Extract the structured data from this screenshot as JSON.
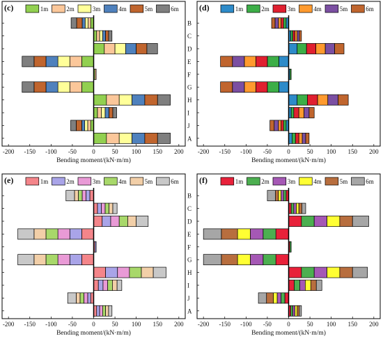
{
  "chart_data": [
    {
      "type": "bar",
      "orientation": "horizontal",
      "stacked": true,
      "panel_label": "(c)",
      "xlabel": "Bending moment/(kN·m/m)",
      "xlim": [
        -215,
        215
      ],
      "xticks": [
        -200,
        -150,
        -100,
        -50,
        0,
        50,
        100,
        150,
        200
      ],
      "categories": [
        "B",
        "C",
        "D",
        "E",
        "F",
        "G",
        "H",
        "I",
        "J",
        "A"
      ],
      "legend": {
        "placement": "top"
      },
      "colors": [
        "#92d050",
        "#fbc79a",
        "#ffff99",
        "#4f81bd",
        "#c0652e",
        "#7f7f7f"
      ],
      "series": [
        {
          "name": "1m",
          "values": [
            -7,
            7,
            25,
            -28,
            3,
            -28,
            30,
            9,
            -7,
            30
          ]
        },
        {
          "name": "2m",
          "values": [
            -6,
            7,
            25,
            -28,
            3,
            -28,
            30,
            9,
            -7,
            30
          ]
        },
        {
          "name": "3m",
          "values": [
            -7,
            7,
            25,
            -28,
            0,
            -28,
            30,
            9,
            -7,
            30
          ]
        },
        {
          "name": "4m",
          "values": [
            -7,
            7,
            25,
            -28,
            0,
            -28,
            30,
            9,
            -7,
            30
          ]
        },
        {
          "name": "5m",
          "values": [
            -13,
            7,
            25,
            -28,
            0,
            -28,
            30,
            9,
            -13,
            30
          ]
        },
        {
          "name": "6m",
          "values": [
            -13,
            8,
            25,
            -28,
            0,
            -28,
            30,
            9,
            -13,
            30
          ]
        }
      ]
    },
    {
      "type": "bar",
      "orientation": "horizontal",
      "stacked": true,
      "panel_label": "(d)",
      "xlabel": "Bending moment/(kN·m/m)",
      "xlim": [
        -215,
        215
      ],
      "xticks": [
        -200,
        -150,
        -100,
        -50,
        0,
        50,
        100,
        150,
        200
      ],
      "categories": [
        "B",
        "C",
        "D",
        "E",
        "F",
        "G",
        "H",
        "I",
        "J",
        "A"
      ],
      "legend": {
        "placement": "top"
      },
      "colors": [
        "#2e8bc9",
        "#3cae47",
        "#e02030",
        "#ff9a2e",
        "#7b4fa2",
        "#c0652e"
      ],
      "series": [
        {
          "name": "1m",
          "values": [
            -6,
            5,
            20,
            -23,
            3,
            -23,
            20,
            6,
            -6,
            8
          ]
        },
        {
          "name": "2m",
          "values": [
            -6,
            5,
            22,
            -27,
            3,
            -27,
            24,
            6,
            -6,
            8
          ]
        },
        {
          "name": "3m",
          "values": [
            -6,
            5,
            22,
            -27,
            0,
            -27,
            24,
            12,
            -6,
            8
          ]
        },
        {
          "name": "4m",
          "values": [
            -6,
            5,
            22,
            -27,
            0,
            -27,
            24,
            12,
            -6,
            8
          ]
        },
        {
          "name": "5m",
          "values": [
            -8,
            5,
            22,
            -28,
            0,
            -28,
            24,
            12,
            -10,
            8
          ]
        },
        {
          "name": "6m",
          "values": [
            -8,
            5,
            22,
            -28,
            0,
            -28,
            24,
            12,
            -10,
            8
          ]
        }
      ]
    },
    {
      "type": "bar",
      "orientation": "horizontal",
      "stacked": true,
      "panel_label": "(e)",
      "xlabel": "Bending moment/(kN·m/m)",
      "xlim": [
        -215,
        215
      ],
      "xticks": [
        -200,
        -150,
        -100,
        -50,
        0,
        50,
        100,
        150,
        200
      ],
      "categories": [
        "B",
        "C",
        "D",
        "E",
        "F",
        "G",
        "H",
        "I",
        "J",
        "A"
      ],
      "legend": {
        "placement": "top"
      },
      "colors": [
        "#f4858a",
        "#a9a4e8",
        "#e99ad6",
        "#a8d86a",
        "#f2cfa8",
        "#c8c8c8"
      ],
      "series": [
        {
          "name": "1m",
          "values": [
            -9,
            9,
            20,
            -28,
            3,
            -28,
            28,
            11,
            -7,
            7
          ]
        },
        {
          "name": "2m",
          "values": [
            -9,
            9,
            20,
            -28,
            3,
            -28,
            28,
            11,
            -7,
            7
          ]
        },
        {
          "name": "3m",
          "values": [
            -9,
            9,
            20,
            -28,
            0,
            -28,
            28,
            11,
            -9,
            7
          ]
        },
        {
          "name": "4m",
          "values": [
            -9,
            9,
            20,
            -28,
            0,
            -28,
            28,
            11,
            -9,
            7
          ]
        },
        {
          "name": "5m",
          "values": [
            -9,
            9,
            20,
            -28,
            0,
            -28,
            28,
            11,
            -9,
            7
          ]
        },
        {
          "name": "6m",
          "values": [
            -20,
            10,
            28,
            -38,
            0,
            -38,
            30,
            11,
            -20,
            8
          ]
        }
      ]
    },
    {
      "type": "bar",
      "orientation": "horizontal",
      "stacked": true,
      "panel_label": "(f)",
      "xlabel": "Bending moment/(kN·m/m)",
      "xlim": [
        -215,
        215
      ],
      "xticks": [
        -200,
        -150,
        -100,
        -50,
        0,
        50,
        100,
        150,
        200
      ],
      "categories": [
        "B",
        "C",
        "D",
        "E",
        "F",
        "G",
        "H",
        "I",
        "J",
        "A"
      ],
      "legend": {
        "placement": "top"
      },
      "colors": [
        "#e8213a",
        "#4caf50",
        "#a558b5",
        "#ffff33",
        "#b86e3e",
        "#a6a6a6"
      ],
      "series": [
        {
          "name": "1m",
          "values": [
            -6,
            6,
            30,
            -30,
            3,
            -30,
            30,
            13,
            -9,
            5
          ]
        },
        {
          "name": "2m",
          "values": [
            -6,
            6,
            30,
            -30,
            3,
            -30,
            30,
            13,
            -9,
            5
          ]
        },
        {
          "name": "3m",
          "values": [
            -6,
            6,
            30,
            -30,
            0,
            -30,
            30,
            13,
            -9,
            5
          ]
        },
        {
          "name": "4m",
          "values": [
            -6,
            6,
            30,
            -30,
            0,
            -30,
            30,
            13,
            -9,
            5
          ]
        },
        {
          "name": "5m",
          "values": [
            -7,
            7,
            30,
            -38,
            0,
            -38,
            30,
            13,
            -16,
            5
          ]
        },
        {
          "name": "6m",
          "values": [
            -19,
            9,
            38,
            -42,
            0,
            -42,
            35,
            13,
            -19,
            5
          ]
        }
      ]
    }
  ]
}
